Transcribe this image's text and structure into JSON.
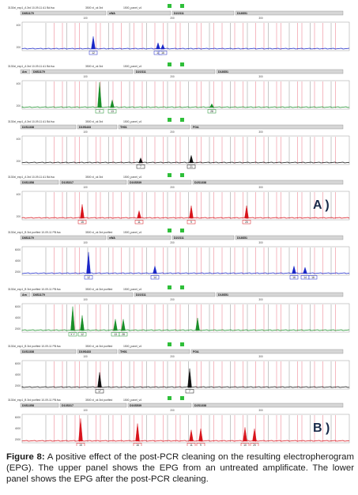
{
  "figure": {
    "panels": [
      {
        "group": "A",
        "color": "#1b27c7",
        "header": "3130xl_exp1_A 3rd 10-09-11 A1 Bd.fsa",
        "header_mid": "3500 xl_ok 3rd",
        "header_mid2": "1500_panel_v4",
        "markers": [
          "D8S1179",
          "vWA",
          "D21S11",
          "D18S51"
        ],
        "scale_ticks": [
          "100",
          "200",
          "300"
        ],
        "y_ticks": [
          "400",
          "200"
        ],
        "peak_labels": [
          "12",
          "14",
          "16"
        ]
      },
      {
        "group": "A",
        "color": "#1a8f2a",
        "header": "3130xl_exp1_A 3rd 10-09-11 A1 Bd.fsa",
        "header_mid": "3500 xl_ok 3rd",
        "header_mid2": "1500_panel_v4",
        "markers": [
          "Am",
          "D8S1179",
          "D21S11",
          "D18S51"
        ],
        "scale_ticks": [
          "100",
          "200",
          "300"
        ],
        "y_ticks": [
          "400",
          "200"
        ],
        "peak_labels": [
          "X",
          "13",
          "28"
        ]
      },
      {
        "group": "A",
        "color": "#111111",
        "header": "3130xl_exp1_A 3rd 10-09-11 A1 Bd.fsa",
        "header_mid": "3500 xl_ok 3rd",
        "header_mid2": "1500_panel_v4",
        "markers": [
          "D2S1338",
          "D19S433",
          "TH01",
          "FGA"
        ],
        "scale_ticks": [
          "100",
          "200",
          "300"
        ],
        "y_ticks": [
          "400",
          "200"
        ],
        "peak_labels": [
          "7",
          "21"
        ]
      },
      {
        "group": "A",
        "color": "#d8141c",
        "header": "3130xl_exp1_A 3rd 10-09-11 A1 Bd.fsa",
        "header_mid": "3500 xl_ok 3rd",
        "header_mid2": "1500_panel_v4",
        "markers": [
          "D3S1358",
          "D13S317",
          "D16S539",
          "D2S1338"
        ],
        "scale_ticks": [
          "100",
          "200",
          "300"
        ],
        "y_ticks": [
          "400",
          "200"
        ],
        "peak_labels": [
          "15",
          "11",
          "9",
          "20"
        ],
        "panel_tag": "A )"
      },
      {
        "group": "B",
        "color": "#1b27c7",
        "header": "3130xl_exp1_B 3rd purified 10-09-11 PB.fsa",
        "header_mid": "3500 xl_ok 3rd purified",
        "header_mid2": "1500_panel_v4",
        "markers": [
          "D8S1179",
          "vWA",
          "D21S11",
          "D18S51"
        ],
        "scale_ticks": [
          "100",
          "200",
          "300"
        ],
        "y_ticks": [
          "6000",
          "4000",
          "2000"
        ],
        "peak_labels": [
          "12",
          "14",
          "16",
          "14",
          "16"
        ]
      },
      {
        "group": "B",
        "color": "#1a8f2a",
        "header": "3130xl_exp1_B 3rd purified 10-09-11 PB.fsa",
        "header_mid": "3500 xl_ok 3rd purified",
        "header_mid2": "1500_panel_v4",
        "markers": [
          "Am",
          "D8S1179",
          "D21S11",
          "D18S51"
        ],
        "scale_ticks": [
          "100",
          "200",
          "300"
        ],
        "y_ticks": [
          "6000",
          "4000",
          "2000"
        ],
        "peak_labels": [
          "X Y",
          "12",
          "13",
          "28"
        ]
      },
      {
        "group": "B",
        "color": "#111111",
        "header": "3130xl_exp1_B 3rd purified 10-09-11 PB.fsa",
        "header_mid": "3500 xl_ok 3rd purified",
        "header_mid2": "1500_panel_v4",
        "markers": [
          "D2S1338",
          "D19S433",
          "TH01",
          "FGA"
        ],
        "scale_ticks": [
          "100",
          "200",
          "300"
        ],
        "y_ticks": [
          "6000",
          "4000",
          "2000"
        ],
        "peak_labels": [
          "17",
          "7"
        ]
      },
      {
        "group": "B",
        "color": "#d8141c",
        "header": "3130xl_exp1_B 3rd purified 10-09-11 PB.fsa",
        "header_mid": "3500 xl_ok 3rd purified",
        "header_mid2": "1500_panel_v4",
        "markers": [
          "D3S1358",
          "D13S317",
          "D16S539",
          "D2S1338"
        ],
        "scale_ticks": [
          "100",
          "200",
          "300"
        ],
        "y_ticks": [
          "6000",
          "4000",
          "2000"
        ],
        "peak_labels": [
          "15",
          "16",
          "11",
          "9",
          "10",
          "20"
        ],
        "panel_tag": "B )"
      }
    ]
  },
  "caption": {
    "label": "Figure 8:",
    "text": "A positive effect of the post-PCR cleaning on the resulting electropherogram (EPG). The upper panel shows the EPG from an untreated amplificate. The lower panel shows the EPG after the post-PCR cleaning."
  }
}
